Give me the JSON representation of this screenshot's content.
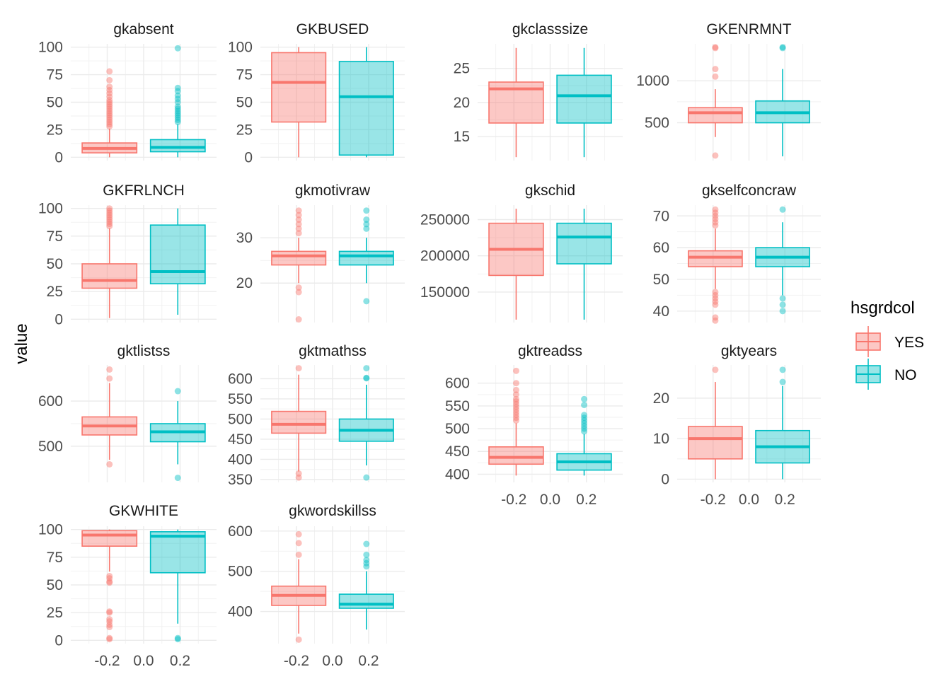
{
  "chart_data": {
    "type": "box",
    "ylabel": "value",
    "legend": {
      "title": "hsgrdcol",
      "placement": "right",
      "entries": [
        {
          "label": "YES",
          "color": "#F8766D"
        },
        {
          "label": "NO",
          "color": "#00BFC4"
        }
      ]
    },
    "group_x": [
      -0.1875,
      0.1875
    ],
    "xlim": [
      -0.4,
      0.4
    ],
    "x_ticks": [
      "-0.2",
      "0.0",
      "0.2"
    ],
    "panels": [
      {
        "title": "gkabsent",
        "ylim": [
          -3,
          103
        ],
        "ticks": [
          {
            "v": 0,
            "l": "0"
          },
          {
            "v": 25,
            "l": "25"
          },
          {
            "v": 50,
            "l": "50"
          },
          {
            "v": 75,
            "l": "75"
          },
          {
            "v": 100,
            "l": "100"
          }
        ],
        "groups": [
          {
            "min": 0,
            "q1": 4,
            "median": 8,
            "q3": 13,
            "max": 26,
            "outliers": [
              28,
              30,
              32,
              34,
              36,
              38,
              40,
              42,
              44,
              46,
              48,
              50,
              52,
              55,
              58,
              61,
              64,
              70,
              78
            ]
          },
          {
            "min": 0,
            "q1": 5,
            "median": 9,
            "q3": 16,
            "max": 30,
            "outliers": [
              32,
              34,
              36,
              38,
              40,
              42,
              44,
              46,
              50,
              53,
              56,
              60,
              63,
              99
            ]
          }
        ]
      },
      {
        "title": "GKBUSED",
        "ylim": [
          -3,
          103
        ],
        "ticks": [
          {
            "v": 0,
            "l": "0"
          },
          {
            "v": 25,
            "l": "25"
          },
          {
            "v": 50,
            "l": "50"
          },
          {
            "v": 75,
            "l": "75"
          },
          {
            "v": 100,
            "l": "100"
          }
        ],
        "groups": [
          {
            "min": 0,
            "q1": 32,
            "median": 68,
            "q3": 95,
            "max": 100,
            "outliers": []
          },
          {
            "min": 0,
            "q1": 2,
            "median": 55,
            "q3": 87,
            "max": 100,
            "outliers": []
          }
        ]
      },
      {
        "title": "gkclasssize",
        "ylim": [
          11.5,
          28.6
        ],
        "ticks": [
          {
            "v": 15,
            "l": "15"
          },
          {
            "v": 20,
            "l": "20"
          },
          {
            "v": 25,
            "l": "25"
          }
        ],
        "groups": [
          {
            "min": 12,
            "q1": 17,
            "median": 22,
            "q3": 23,
            "max": 28,
            "outliers": []
          },
          {
            "min": 12,
            "q1": 17,
            "median": 21,
            "q3": 24,
            "max": 28,
            "outliers": []
          }
        ]
      },
      {
        "title": "GKENRMNT",
        "ylim": [
          50,
          1440
        ],
        "ticks": [
          {
            "v": 500,
            "l": "500"
          },
          {
            "v": 1000,
            "l": "1000"
          }
        ],
        "groups": [
          {
            "min": 330,
            "q1": 500,
            "median": 620,
            "q3": 680,
            "max": 900,
            "outliers": [
              1050,
              1140,
              1390,
              1400,
              110
            ]
          },
          {
            "min": 100,
            "q1": 500,
            "median": 620,
            "q3": 760,
            "max": 1140,
            "outliers": [
              1390,
              1400
            ]
          }
        ]
      },
      {
        "title": "GKFRLNCH",
        "ylim": [
          -3,
          103
        ],
        "ticks": [
          {
            "v": 0,
            "l": "0"
          },
          {
            "v": 25,
            "l": "25"
          },
          {
            "v": 50,
            "l": "50"
          },
          {
            "v": 75,
            "l": "75"
          },
          {
            "v": 100,
            "l": "100"
          }
        ],
        "groups": [
          {
            "min": 1,
            "q1": 28,
            "median": 35,
            "q3": 50,
            "max": 82,
            "outliers": [
              84,
              86,
              88,
              90,
              92,
              94,
              96,
              98,
              100
            ]
          },
          {
            "min": 4,
            "q1": 32,
            "median": 43,
            "q3": 85,
            "max": 100,
            "outliers": []
          }
        ]
      },
      {
        "title": "gkmotivraw",
        "ylim": [
          11.3,
          37.2
        ],
        "ticks": [
          {
            "v": 20,
            "l": "20"
          },
          {
            "v": 30,
            "l": "30"
          }
        ],
        "groups": [
          {
            "min": 20,
            "q1": 24,
            "median": 26,
            "q3": 27,
            "max": 30,
            "outliers": [
              31,
              32,
              33,
              34,
              35,
              36,
              19,
              18,
              12
            ]
          },
          {
            "min": 20,
            "q1": 24,
            "median": 26,
            "q3": 27,
            "max": 30,
            "outliers": [
              32,
              33,
              34,
              36,
              16
            ]
          }
        ]
      },
      {
        "title": "gkschid",
        "ylim": [
          108000,
          270000
        ],
        "ticks": [
          {
            "v": 150000,
            "l": "150000"
          },
          {
            "v": 200000,
            "l": "200000"
          },
          {
            "v": 250000,
            "l": "250000"
          }
        ],
        "groups": [
          {
            "min": 112000,
            "q1": 173000,
            "median": 209000,
            "q3": 245000,
            "max": 265000,
            "outliers": []
          },
          {
            "min": 112000,
            "q1": 189000,
            "median": 226000,
            "q3": 245000,
            "max": 265000,
            "outliers": []
          }
        ]
      },
      {
        "title": "gkselfconcraw",
        "ylim": [
          36.4,
          73.4
        ],
        "ticks": [
          {
            "v": 40,
            "l": "40"
          },
          {
            "v": 50,
            "l": "50"
          },
          {
            "v": 60,
            "l": "60"
          },
          {
            "v": 70,
            "l": "70"
          }
        ],
        "groups": [
          {
            "min": 47,
            "q1": 54,
            "median": 57,
            "q3": 59,
            "max": 66,
            "outliers": [
              67,
              68,
              69,
              70,
              71,
              72,
              46,
              45,
              44,
              43,
              42,
              38,
              37
            ]
          },
          {
            "min": 45,
            "q1": 54,
            "median": 57,
            "q3": 60,
            "max": 68,
            "outliers": [
              72,
              44,
              42,
              40
            ]
          }
        ]
      },
      {
        "title": "gktlistss",
        "ylim": [
          420,
          680
        ],
        "ticks": [
          {
            "v": 500,
            "l": "500"
          },
          {
            "v": 600,
            "l": "600"
          }
        ],
        "groups": [
          {
            "min": 470,
            "q1": 525,
            "median": 545,
            "q3": 565,
            "max": 640,
            "outliers": [
              650,
              670,
              460
            ]
          },
          {
            "min": 460,
            "q1": 510,
            "median": 532,
            "q3": 550,
            "max": 600,
            "outliers": [
              622,
              430
            ]
          }
        ]
      },
      {
        "title": "gktmathss",
        "ylim": [
          343,
          634
        ],
        "ticks": [
          {
            "v": 350,
            "l": "350"
          },
          {
            "v": 400,
            "l": "400"
          },
          {
            "v": 450,
            "l": "450"
          },
          {
            "v": 500,
            "l": "500"
          },
          {
            "v": 550,
            "l": "550"
          },
          {
            "v": 600,
            "l": "600"
          }
        ],
        "groups": [
          {
            "min": 370,
            "q1": 465,
            "median": 487,
            "q3": 519,
            "max": 610,
            "outliers": [
              626,
              365,
              355
            ]
          },
          {
            "min": 385,
            "q1": 445,
            "median": 472,
            "q3": 500,
            "max": 585,
            "outliers": [
              601,
              602,
              626,
              355
            ]
          }
        ]
      },
      {
        "title": "gktreadss",
        "ylim": [
          382,
          640
        ],
        "ticks": [
          {
            "v": 400,
            "l": "400"
          },
          {
            "v": 450,
            "l": "450"
          },
          {
            "v": 500,
            "l": "500"
          },
          {
            "v": 550,
            "l": "550"
          },
          {
            "v": 600,
            "l": "600"
          }
        ],
        "groups": [
          {
            "min": 397,
            "q1": 422,
            "median": 437,
            "q3": 460,
            "max": 512,
            "outliers": [
              518,
              524,
              530,
              536,
              542,
              548,
              554,
              560,
              565,
              575,
              585,
              600,
              627
            ]
          },
          {
            "min": 397,
            "q1": 409,
            "median": 427,
            "q3": 445,
            "max": 488,
            "outliers": [
              494,
              500,
              506,
              512,
              518,
              524,
              530,
              552,
              565
            ]
          }
        ]
      },
      {
        "title": "gktyears",
        "ylim": [
          -0.8,
          28.2
        ],
        "ticks": [
          {
            "v": 0,
            "l": "0"
          },
          {
            "v": 10,
            "l": "10"
          },
          {
            "v": 20,
            "l": "20"
          }
        ],
        "groups": [
          {
            "min": 0,
            "q1": 5,
            "median": 10,
            "q3": 13,
            "max": 24,
            "outliers": [
              27
            ]
          },
          {
            "min": 0,
            "q1": 4,
            "median": 8,
            "q3": 12,
            "max": 23,
            "outliers": [
              24,
              27
            ]
          }
        ]
      },
      {
        "title": "GKWHITE",
        "ylim": [
          -3,
          103
        ],
        "ticks": [
          {
            "v": 0,
            "l": "0"
          },
          {
            "v": 25,
            "l": "25"
          },
          {
            "v": 50,
            "l": "50"
          },
          {
            "v": 75,
            "l": "75"
          },
          {
            "v": 100,
            "l": "100"
          }
        ],
        "groups": [
          {
            "min": 62,
            "q1": 85,
            "median": 95,
            "q3": 99,
            "max": 100,
            "outliers": [
              58,
              56,
              53,
              52,
              26,
              25,
              19,
              17,
              14,
              12,
              2,
              1
            ]
          },
          {
            "min": 15,
            "q1": 61,
            "median": 94,
            "q3": 98,
            "max": 100,
            "outliers": [
              2,
              1
            ]
          }
        ]
      },
      {
        "title": "gkwordskillss",
        "ylim": [
          320,
          612
        ],
        "ticks": [
          {
            "v": 400,
            "l": "400"
          },
          {
            "v": 500,
            "l": "500"
          },
          {
            "v": 600,
            "l": "600"
          }
        ],
        "groups": [
          {
            "min": 345,
            "q1": 415,
            "median": 440,
            "q3": 463,
            "max": 530,
            "outliers": [
              541,
              570,
              592,
              330
            ]
          },
          {
            "min": 355,
            "q1": 408,
            "median": 418,
            "q3": 443,
            "max": 500,
            "outliers": [
              512,
              520,
              528,
              541,
              568
            ]
          }
        ]
      }
    ]
  }
}
